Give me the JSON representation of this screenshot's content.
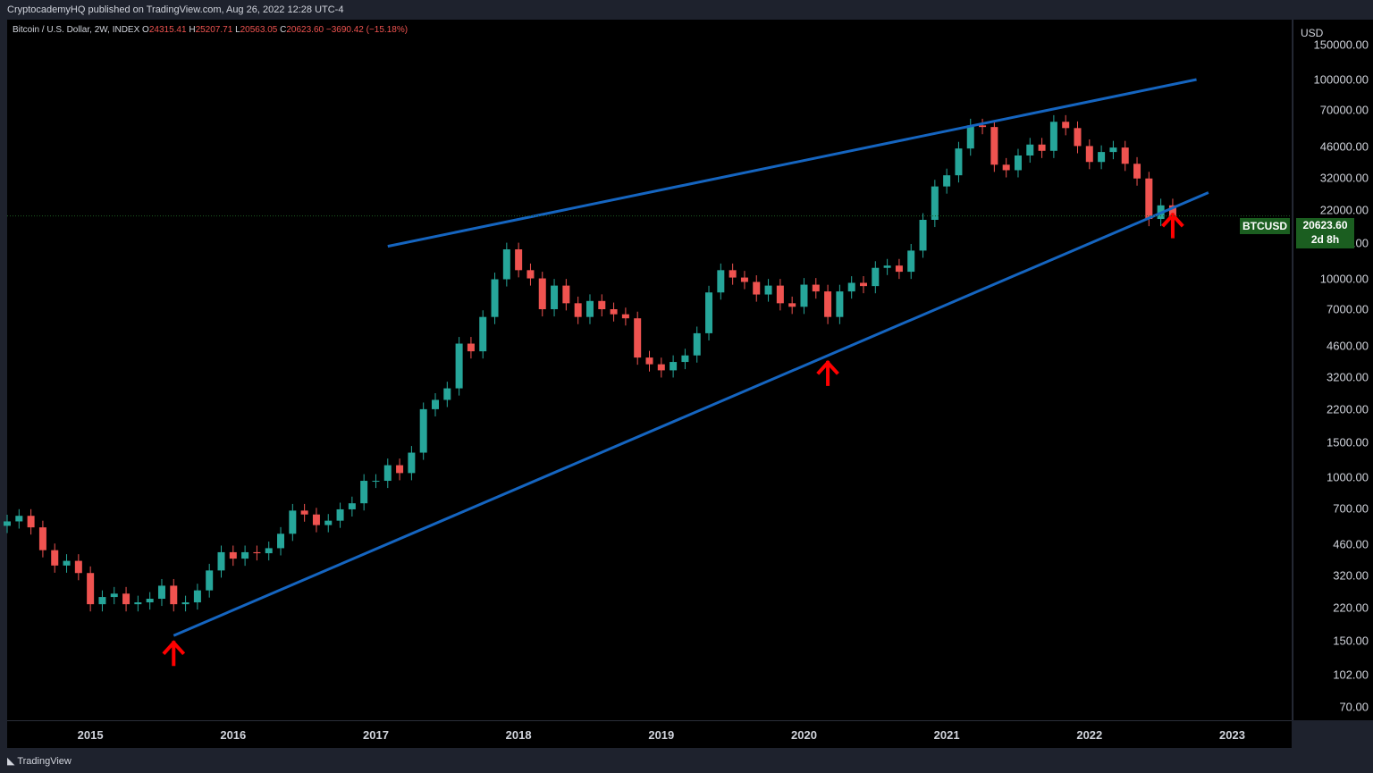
{
  "header": {
    "publisher": "CryptocademyHQ published on TradingView.com, Aug 26, 2022 12:28 UTC-4"
  },
  "legend": {
    "name": "Bitcoin / U.S. Dollar, 2W, INDEX",
    "o_label": "O",
    "o": "24315.41",
    "h_label": "H",
    "h": "25207.71",
    "l_label": "L",
    "l": "20563.05",
    "c_label": "C",
    "c": "20623.60",
    "change": "−3690.42 (−15.18%)"
  },
  "price_axis": {
    "unit": "USD",
    "ticks": [
      "150000.00",
      "100000.00",
      "70000.00",
      "46000.00",
      "32000.00",
      "22000.00",
      "15000.00",
      "10000.00",
      "7000.00",
      "4600.00",
      "3200.00",
      "2200.00",
      "1500.00",
      "1000.00",
      "700.00",
      "460.00",
      "320.00",
      "220.00",
      "150.00",
      "102.00",
      "70.00"
    ]
  },
  "price_label": {
    "symbol": "BTCUSD",
    "price": "20623.60",
    "countdown": "2d 8h"
  },
  "time_axis": {
    "ticks": [
      "2015",
      "2016",
      "2017",
      "2018",
      "2019",
      "2020",
      "2021",
      "2022",
      "2023"
    ]
  },
  "footer": {
    "brand": "TradingView"
  },
  "colors": {
    "up": "#26a69a",
    "down": "#ef5350",
    "trendline": "#1565c0",
    "arrow": "#ff0000",
    "label_bg": "#1b5e20"
  },
  "chart_data": {
    "type": "candlestick",
    "title": "Bitcoin / U.S. Dollar, 2W, INDEX",
    "y_scale": "log",
    "ylim": [
      60,
      200000
    ],
    "x_range": [
      "2014-06",
      "2023-06"
    ],
    "closes": [
      [
        "2014-06",
        600
      ],
      [
        "2014-07",
        640
      ],
      [
        "2014-08",
        560
      ],
      [
        "2014-09",
        430
      ],
      [
        "2014-10",
        360
      ],
      [
        "2014-11",
        380
      ],
      [
        "2014-12",
        330
      ],
      [
        "2015-01",
        230
      ],
      [
        "2015-02",
        250
      ],
      [
        "2015-03",
        260
      ],
      [
        "2015-04",
        230
      ],
      [
        "2015-05",
        235
      ],
      [
        "2015-06",
        245
      ],
      [
        "2015-07",
        285
      ],
      [
        "2015-08",
        230
      ],
      [
        "2015-09",
        235
      ],
      [
        "2015-10",
        270
      ],
      [
        "2015-11",
        340
      ],
      [
        "2015-12",
        420
      ],
      [
        "2016-01",
        390
      ],
      [
        "2016-02",
        420
      ],
      [
        "2016-03",
        415
      ],
      [
        "2016-04",
        440
      ],
      [
        "2016-05",
        520
      ],
      [
        "2016-06",
        680
      ],
      [
        "2016-07",
        650
      ],
      [
        "2016-08",
        575
      ],
      [
        "2016-09",
        605
      ],
      [
        "2016-10",
        690
      ],
      [
        "2016-11",
        740
      ],
      [
        "2016-12",
        960
      ],
      [
        "2017-01",
        960
      ],
      [
        "2017-02",
        1150
      ],
      [
        "2017-03",
        1050
      ],
      [
        "2017-04",
        1330
      ],
      [
        "2017-05",
        2200
      ],
      [
        "2017-06",
        2450
      ],
      [
        "2017-07",
        2800
      ],
      [
        "2017-08",
        4700
      ],
      [
        "2017-09",
        4300
      ],
      [
        "2017-10",
        6400
      ],
      [
        "2017-11",
        9900
      ],
      [
        "2017-12",
        14000
      ],
      [
        "2018-01",
        11000
      ],
      [
        "2018-02",
        10000
      ],
      [
        "2018-03",
        7000
      ],
      [
        "2018-04",
        9200
      ],
      [
        "2018-05",
        7500
      ],
      [
        "2018-06",
        6400
      ],
      [
        "2018-07",
        7700
      ],
      [
        "2018-08",
        7000
      ],
      [
        "2018-09",
        6600
      ],
      [
        "2018-10",
        6300
      ],
      [
        "2018-11",
        4000
      ],
      [
        "2018-12",
        3700
      ],
      [
        "2019-01",
        3450
      ],
      [
        "2019-02",
        3800
      ],
      [
        "2019-03",
        4100
      ],
      [
        "2019-04",
        5300
      ],
      [
        "2019-05",
        8500
      ],
      [
        "2019-06",
        11000
      ],
      [
        "2019-07",
        10100
      ],
      [
        "2019-08",
        9600
      ],
      [
        "2019-09",
        8300
      ],
      [
        "2019-10",
        9200
      ],
      [
        "2019-11",
        7500
      ],
      [
        "2019-12",
        7200
      ],
      [
        "2020-01",
        9300
      ],
      [
        "2020-02",
        8600
      ],
      [
        "2020-03",
        6400
      ],
      [
        "2020-04",
        8600
      ],
      [
        "2020-05",
        9500
      ],
      [
        "2020-06",
        9150
      ],
      [
        "2020-07",
        11300
      ],
      [
        "2020-08",
        11600
      ],
      [
        "2020-09",
        10800
      ],
      [
        "2020-10",
        13800
      ],
      [
        "2020-11",
        19700
      ],
      [
        "2020-12",
        29000
      ],
      [
        "2021-01",
        33000
      ],
      [
        "2021-02",
        45000
      ],
      [
        "2021-03",
        58800
      ],
      [
        "2021-04",
        57700
      ],
      [
        "2021-05",
        37300
      ],
      [
        "2021-06",
        35000
      ],
      [
        "2021-07",
        41500
      ],
      [
        "2021-08",
        47100
      ],
      [
        "2021-09",
        43800
      ],
      [
        "2021-10",
        61300
      ],
      [
        "2021-11",
        57000
      ],
      [
        "2021-12",
        46300
      ],
      [
        "2022-01",
        38500
      ],
      [
        "2022-02",
        43200
      ],
      [
        "2022-03",
        45500
      ],
      [
        "2022-04",
        37700
      ],
      [
        "2022-05",
        31800
      ],
      [
        "2022-06",
        19900
      ],
      [
        "2022-07",
        23300
      ],
      [
        "2022-08",
        20623.6
      ]
    ],
    "trendlines": [
      {
        "from": [
          "2015-08",
          160
        ],
        "to": [
          "2022-11",
          27000
        ]
      },
      {
        "from": [
          "2017-02",
          14500
        ],
        "to": [
          "2022-10",
          100000
        ]
      }
    ],
    "markers": [
      {
        "type": "arrow-up",
        "date": "2015-08"
      },
      {
        "type": "arrow-up",
        "date": "2020-03"
      },
      {
        "type": "arrow-up",
        "date": "2022-08"
      }
    ]
  }
}
